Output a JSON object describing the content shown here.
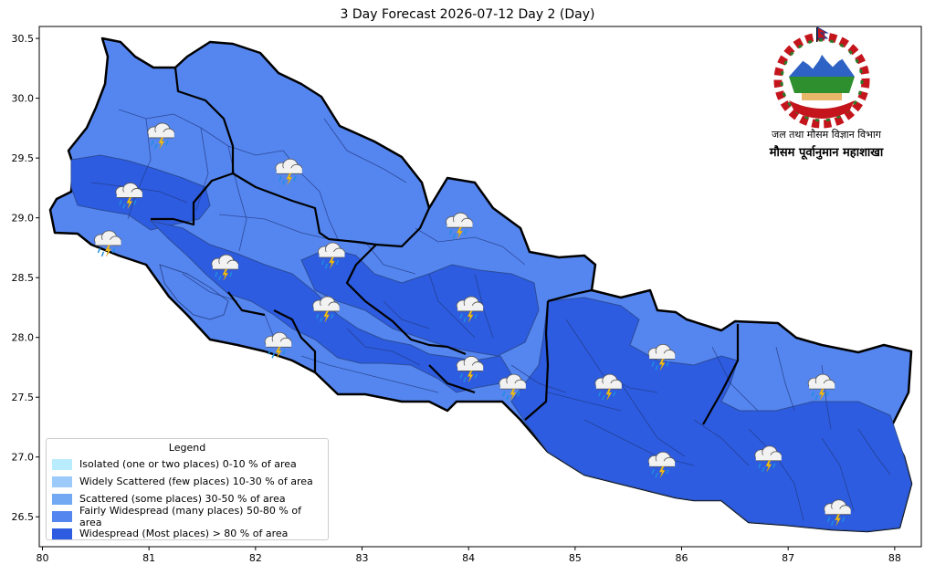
{
  "title": "3 Day Forecast 2026-07-12 Day 2 (Day)",
  "map": {
    "x_ticks": [
      "80",
      "81",
      "82",
      "83",
      "84",
      "85",
      "86",
      "87",
      "88"
    ],
    "y_ticks": [
      "26.5",
      "27.0",
      "27.5",
      "28.0",
      "28.5",
      "29.0",
      "29.5",
      "30.0",
      "30.5"
    ],
    "x_range": [
      79.97,
      88.25
    ],
    "y_range": [
      26.25,
      30.6
    ],
    "weather_icon": "thunderstorm-rain-icon",
    "storm_locations": [
      {
        "lon": 81.1,
        "lat": 29.7
      },
      {
        "lon": 82.3,
        "lat": 29.4
      },
      {
        "lon": 80.8,
        "lat": 29.2
      },
      {
        "lon": 80.6,
        "lat": 28.8
      },
      {
        "lon": 81.7,
        "lat": 28.6
      },
      {
        "lon": 82.7,
        "lat": 28.7
      },
      {
        "lon": 83.9,
        "lat": 28.95
      },
      {
        "lon": 82.65,
        "lat": 28.25
      },
      {
        "lon": 84.0,
        "lat": 28.25
      },
      {
        "lon": 82.2,
        "lat": 27.95
      },
      {
        "lon": 84.0,
        "lat": 27.75
      },
      {
        "lon": 84.4,
        "lat": 27.6
      },
      {
        "lon": 85.3,
        "lat": 27.6
      },
      {
        "lon": 85.8,
        "lat": 27.85
      },
      {
        "lon": 87.3,
        "lat": 27.6
      },
      {
        "lon": 85.8,
        "lat": 26.95
      },
      {
        "lon": 86.8,
        "lat": 27.0
      },
      {
        "lon": 87.45,
        "lat": 26.55
      }
    ]
  },
  "legend": {
    "title": "Legend",
    "items": [
      {
        "label": "Isolated (one or two places)  0-10 % of area",
        "color": "#b9ecfd"
      },
      {
        "label": "Widely Scattered (few places)  10-30 % of area",
        "color": "#9ccafa"
      },
      {
        "label": "Scattered (some places)  30-50 % of area",
        "color": "#73a8f3"
      },
      {
        "label": "Fairly Widespread (many places)  50-80 % of area",
        "color": "#5586ef"
      },
      {
        "label": "Widespread (Most places) > 80 % of area",
        "color": "#2d5ce0"
      }
    ]
  },
  "agency": {
    "line1": "जल तथा मौसम विज्ञान विभाग",
    "line2": "मौसम पूर्वानुमान महाशाखा"
  },
  "colors": {
    "fairly_widespread": "#5586ef",
    "widespread": "#2d5ce0",
    "boundary": "#000000",
    "internal_boundary": "#233a85"
  }
}
